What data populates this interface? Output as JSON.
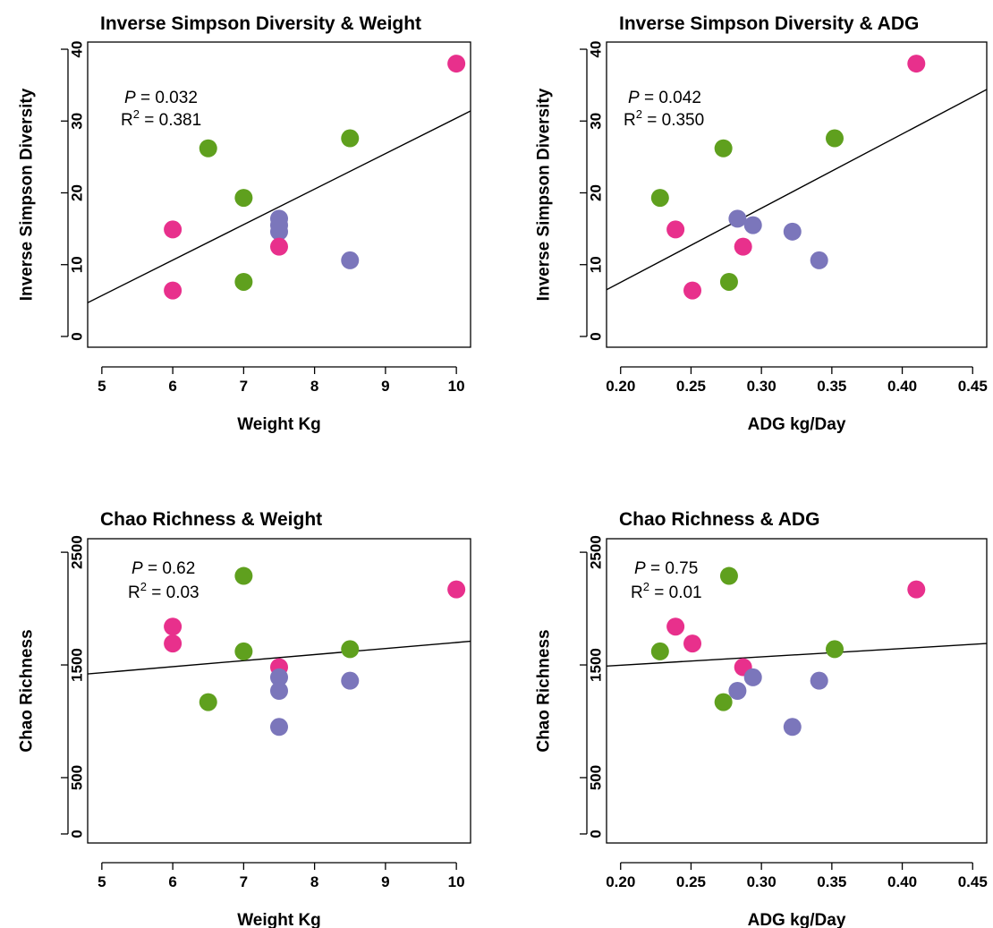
{
  "colors": {
    "green": "#5fa01e",
    "pink": "#e8308c",
    "purple": "#7b76bb"
  },
  "chart_data": [
    {
      "type": "scatter",
      "title": "Inverse Simpson Diversity & Weight",
      "xlabel": "Weight Kg",
      "ylabel": "Inverse Simpson Diversity",
      "xlim": [
        4.8,
        10.2
      ],
      "ylim": [
        -1.5,
        41
      ],
      "xticks": [
        5,
        6,
        7,
        8,
        9,
        10
      ],
      "yticks": [
        0,
        10,
        20,
        30,
        40
      ],
      "annotation": {
        "p_label": "P",
        "p_value": "= 0.032",
        "r2_label": "R",
        "r2_sup": "2",
        "r2_value": "= 0.381"
      },
      "fit_line": {
        "x": [
          4.8,
          10.2
        ],
        "y": [
          4.7,
          31.4
        ]
      },
      "points": [
        {
          "x": 10,
          "y": 38,
          "group": "pink"
        },
        {
          "x": 6.5,
          "y": 26.2,
          "group": "green"
        },
        {
          "x": 8.5,
          "y": 27.6,
          "group": "green"
        },
        {
          "x": 7,
          "y": 19.3,
          "group": "green"
        },
        {
          "x": 7.5,
          "y": 16.4,
          "group": "purple"
        },
        {
          "x": 7.5,
          "y": 15.5,
          "group": "purple"
        },
        {
          "x": 7.5,
          "y": 14.6,
          "group": "purple"
        },
        {
          "x": 6,
          "y": 14.9,
          "group": "pink"
        },
        {
          "x": 7.5,
          "y": 12.5,
          "group": "pink"
        },
        {
          "x": 8.5,
          "y": 10.6,
          "group": "purple"
        },
        {
          "x": 7,
          "y": 7.6,
          "group": "green"
        },
        {
          "x": 6,
          "y": 6.4,
          "group": "pink"
        }
      ]
    },
    {
      "type": "scatter",
      "title": "Inverse Simpson Diversity & ADG",
      "xlabel": "ADG kg/Day",
      "ylabel": "Inverse Simpson Diversity",
      "xlim": [
        0.19,
        0.46
      ],
      "ylim": [
        -1.5,
        41
      ],
      "xticks": [
        "0.20",
        "0.25",
        "0.30",
        "0.35",
        "0.40",
        "0.45"
      ],
      "yticks": [
        0,
        10,
        20,
        30,
        40
      ],
      "annotation": {
        "p_label": "P",
        "p_value": "= 0.042",
        "r2_label": "R",
        "r2_sup": "2",
        "r2_value": "= 0.350"
      },
      "fit_line": {
        "x": [
          0.19,
          0.46
        ],
        "y": [
          6.5,
          34.4
        ]
      },
      "points": [
        {
          "x": 0.41,
          "y": 38,
          "group": "pink"
        },
        {
          "x": 0.273,
          "y": 26.2,
          "group": "green"
        },
        {
          "x": 0.352,
          "y": 27.6,
          "group": "green"
        },
        {
          "x": 0.228,
          "y": 19.3,
          "group": "green"
        },
        {
          "x": 0.283,
          "y": 16.4,
          "group": "purple"
        },
        {
          "x": 0.294,
          "y": 15.5,
          "group": "purple"
        },
        {
          "x": 0.322,
          "y": 14.6,
          "group": "purple"
        },
        {
          "x": 0.239,
          "y": 14.9,
          "group": "pink"
        },
        {
          "x": 0.287,
          "y": 12.5,
          "group": "pink"
        },
        {
          "x": 0.341,
          "y": 10.6,
          "group": "purple"
        },
        {
          "x": 0.277,
          "y": 7.6,
          "group": "green"
        },
        {
          "x": 0.251,
          "y": 6.4,
          "group": "pink"
        }
      ]
    },
    {
      "type": "scatter",
      "title": "Chao Richness & Weight",
      "xlabel": "Weight Kg",
      "ylabel": "Chao Richness",
      "xlim": [
        4.8,
        10.2
      ],
      "ylim": [
        -80,
        2620
      ],
      "xticks": [
        5,
        6,
        7,
        8,
        9,
        10
      ],
      "yticks": [
        0,
        500,
        1500,
        2500
      ],
      "annotation": {
        "p_label": "P",
        "p_value": "= 0.62",
        "r2_label": "R",
        "r2_sup": "2",
        "r2_value": "= 0.03"
      },
      "fit_line": {
        "x": [
          4.8,
          10.2
        ],
        "y": [
          1420,
          1710
        ]
      },
      "points": [
        {
          "x": 7,
          "y": 2290,
          "group": "green"
        },
        {
          "x": 10,
          "y": 2170,
          "group": "pink"
        },
        {
          "x": 6,
          "y": 1840,
          "group": "pink"
        },
        {
          "x": 6,
          "y": 1690,
          "group": "pink"
        },
        {
          "x": 7,
          "y": 1620,
          "group": "green"
        },
        {
          "x": 8.5,
          "y": 1640,
          "group": "green"
        },
        {
          "x": 7.5,
          "y": 1480,
          "group": "pink"
        },
        {
          "x": 7.5,
          "y": 1390,
          "group": "purple"
        },
        {
          "x": 8.5,
          "y": 1360,
          "group": "purple"
        },
        {
          "x": 7.5,
          "y": 1270,
          "group": "purple"
        },
        {
          "x": 6.5,
          "y": 1170,
          "group": "green"
        },
        {
          "x": 7.5,
          "y": 950,
          "group": "purple"
        }
      ]
    },
    {
      "type": "scatter",
      "title": "Chao Richness & ADG",
      "xlabel": "ADG kg/Day",
      "ylabel": "Chao Richness",
      "xlim": [
        0.19,
        0.46
      ],
      "ylim": [
        -80,
        2620
      ],
      "xticks": [
        "0.20",
        "0.25",
        "0.30",
        "0.35",
        "0.40",
        "0.45"
      ],
      "yticks": [
        0,
        500,
        1500,
        2500
      ],
      "annotation": {
        "p_label": "P",
        "p_value": "= 0.75",
        "r2_label": "R",
        "r2_sup": "2",
        "r2_value": "= 0.01"
      },
      "fit_line": {
        "x": [
          0.19,
          0.46
        ],
        "y": [
          1490,
          1690
        ]
      },
      "points": [
        {
          "x": 0.277,
          "y": 2290,
          "group": "green"
        },
        {
          "x": 0.41,
          "y": 2170,
          "group": "pink"
        },
        {
          "x": 0.239,
          "y": 1840,
          "group": "pink"
        },
        {
          "x": 0.251,
          "y": 1690,
          "group": "pink"
        },
        {
          "x": 0.228,
          "y": 1620,
          "group": "green"
        },
        {
          "x": 0.352,
          "y": 1640,
          "group": "green"
        },
        {
          "x": 0.287,
          "y": 1480,
          "group": "pink"
        },
        {
          "x": 0.294,
          "y": 1390,
          "group": "purple"
        },
        {
          "x": 0.341,
          "y": 1360,
          "group": "purple"
        },
        {
          "x": 0.283,
          "y": 1270,
          "group": "purple"
        },
        {
          "x": 0.273,
          "y": 1170,
          "group": "green"
        },
        {
          "x": 0.322,
          "y": 950,
          "group": "purple"
        }
      ]
    }
  ]
}
